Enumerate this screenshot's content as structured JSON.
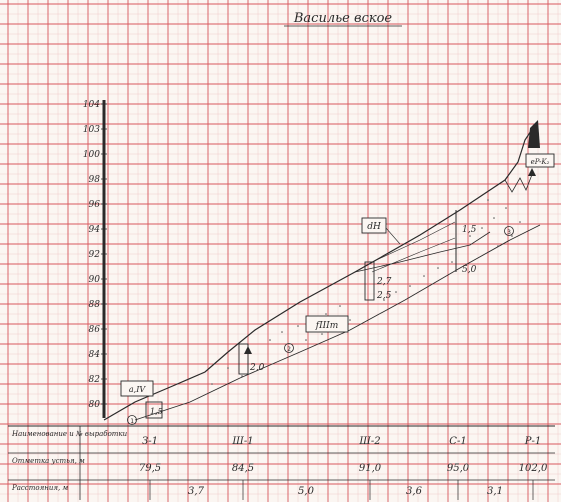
{
  "drawing": {
    "title": "Василье вское",
    "elevation_axis": {
      "ticks": [
        "104",
        "103",
        "100",
        "98",
        "96",
        "94",
        "92",
        "90",
        "88",
        "86",
        "84",
        "82",
        "80"
      ]
    },
    "table_rows": [
      "Наименование и № выработки",
      "Отметка устья, м",
      "Расстояния, м"
    ],
    "workings": [
      {
        "name": "З-1",
        "mouth_elevation": "79,5"
      },
      {
        "name": "Ш-1",
        "mouth_elevation": "84,5"
      },
      {
        "name": "Ш-2",
        "mouth_elevation": "91,0"
      },
      {
        "name": "С-1",
        "mouth_elevation": "95,0"
      },
      {
        "name": "Р-1",
        "mouth_elevation": "102,0"
      }
    ],
    "distances": [
      "3,7",
      "5,0",
      "3,6",
      "3,1"
    ],
    "layer_labels": [
      "dH",
      "fIIIm",
      "a,IV",
      "eP-K₂"
    ],
    "circle_markers": [
      "1",
      "2",
      "3"
    ],
    "depth_annotations": [
      "2,0",
      "2,7",
      "2,5",
      "1,5",
      "5,0",
      "1,5"
    ],
    "colors": {
      "grid_major": "#d8585e",
      "grid_minor": "#efc2c2",
      "ink": "#2a2a2a",
      "paper": "#fbf6f2"
    }
  }
}
